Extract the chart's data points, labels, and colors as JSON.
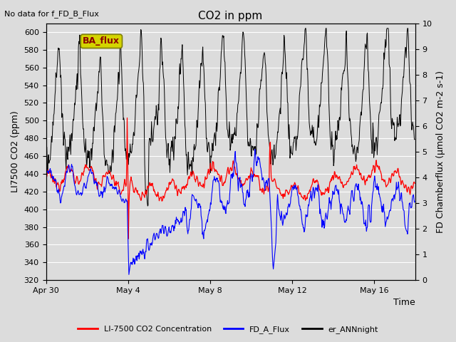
{
  "title": "CO2 in ppm",
  "top_left_note": "No data for f_FD_B_Flux",
  "annotation_box": "BA_flux",
  "xlabel": "Time",
  "ylabel_left": "LI7500 CO2 (ppm)",
  "ylabel_right": "FD Chamberflux (μmol CO2 m-2 s-1)",
  "ylim_left": [
    320,
    610
  ],
  "ylim_right": [
    0.0,
    10.0
  ],
  "yticks_left": [
    320,
    340,
    360,
    380,
    400,
    420,
    440,
    460,
    480,
    500,
    520,
    540,
    560,
    580,
    600
  ],
  "yticks_right": [
    0.0,
    1.0,
    2.0,
    3.0,
    4.0,
    5.0,
    6.0,
    7.0,
    8.0,
    9.0,
    10.0
  ],
  "xtick_labels": [
    "Apr 30",
    "May 4",
    "May 8",
    "May 12",
    "May 16"
  ],
  "background_color": "#dcdcdc",
  "plot_bg_color": "#dcdcdc",
  "grid_color": "#ffffff",
  "line_red_color": "#ff0000",
  "line_blue_color": "#0000ff",
  "line_black_color": "#000000",
  "legend_labels": [
    "LI-7500 CO2 Concentration",
    "FD_A_Flux",
    "er_ANNnight"
  ],
  "legend_colors": [
    "#ff0000",
    "#0000ff",
    "#000000"
  ],
  "annotation_box_facecolor": "#d4d400",
  "annotation_box_edgecolor": "#808000",
  "annotation_text_color": "#8b0000",
  "title_fontsize": 11,
  "axis_fontsize": 9,
  "tick_fontsize": 8,
  "note_fontsize": 8
}
